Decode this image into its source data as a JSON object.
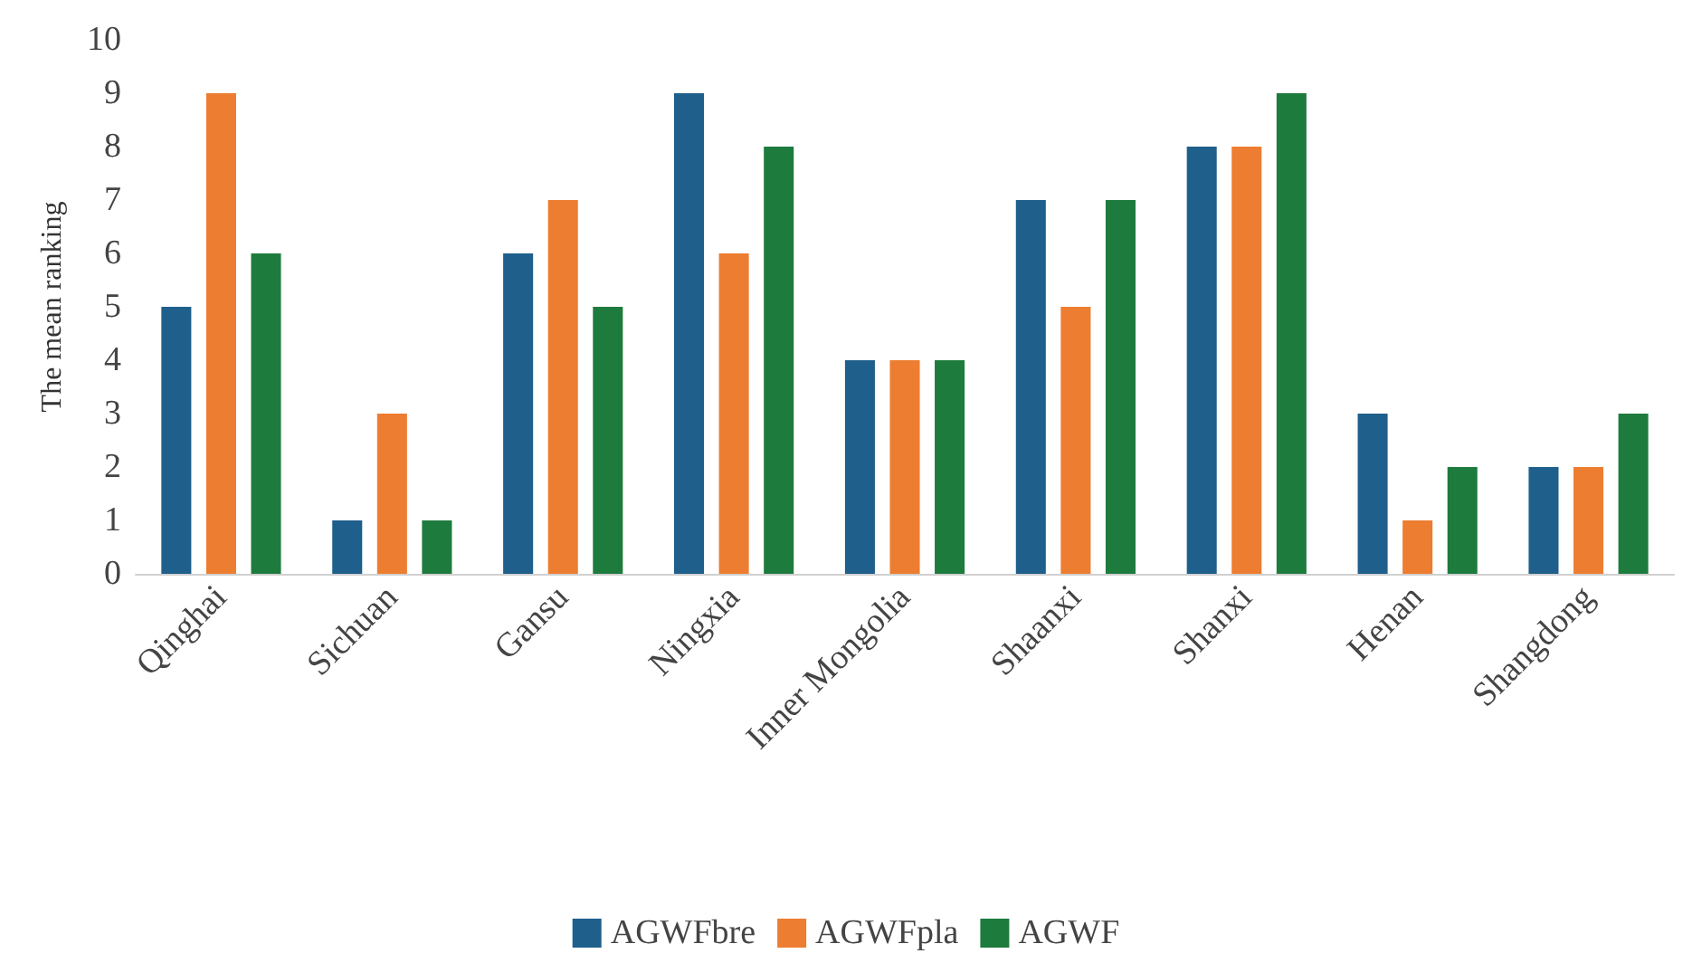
{
  "chart_data": {
    "type": "bar",
    "ylabel": "The mean ranking",
    "categories": [
      "Qinghai",
      "Sichuan",
      "Gansu",
      "Ningxia",
      "Inner Mongolia",
      "Shaanxi",
      "Shanxi",
      "Henan",
      "Shangdong"
    ],
    "series": [
      {
        "name": "AGWFbre",
        "color": "#1f5f8b",
        "values": [
          5,
          1,
          6,
          9,
          4,
          7,
          8,
          3,
          2
        ]
      },
      {
        "name": "AGWFpla",
        "color": "#ed7d31",
        "values": [
          9,
          3,
          7,
          6,
          4,
          5,
          8,
          1,
          2
        ]
      },
      {
        "name": "AGWF",
        "color": "#1e7b3e",
        "values": [
          6,
          1,
          5,
          8,
          4,
          7,
          9,
          2,
          3
        ]
      }
    ],
    "ylim": [
      0,
      10
    ],
    "yticks": [
      0,
      1,
      2,
      3,
      4,
      5,
      6,
      7,
      8,
      9,
      10
    ],
    "grid": false,
    "legend": "bottom"
  }
}
